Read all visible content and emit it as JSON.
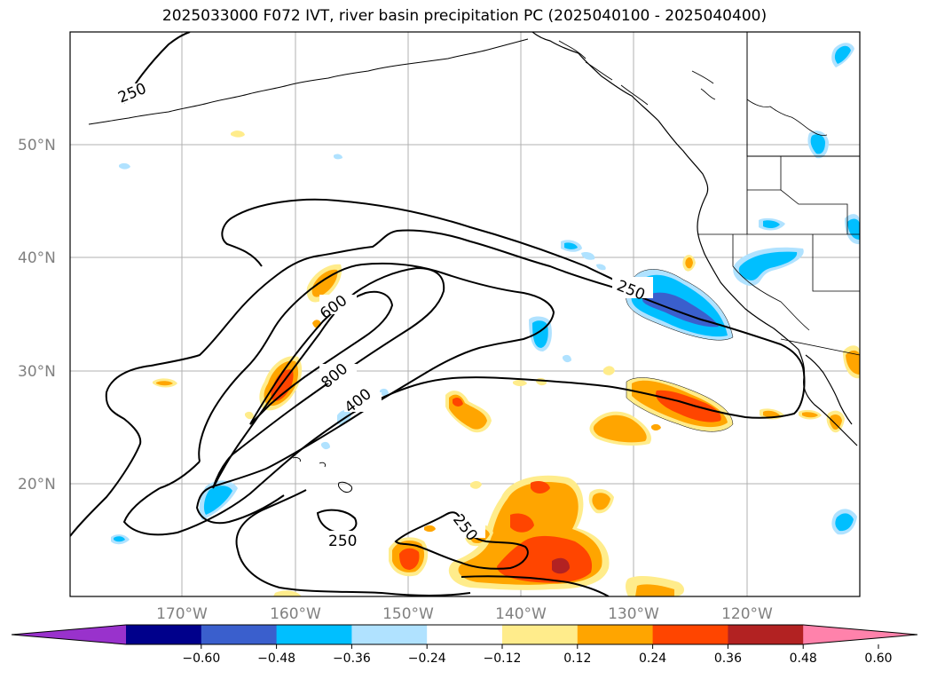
{
  "title": "2025033000 F072 IVT, river basin precipitation PC (2025040100 - 2025040400)",
  "map": {
    "lat_labels": [
      "50°N",
      "40°N",
      "30°N",
      "20°N"
    ],
    "lon_labels": [
      "170°W",
      "160°W",
      "150°W",
      "140°W",
      "130°W",
      "120°W"
    ],
    "contour_labels": [
      "250",
      "600",
      "800",
      "400",
      "250",
      "250",
      "250"
    ]
  },
  "colorbar": {
    "ticks": [
      "−0.60",
      "−0.48",
      "−0.36",
      "−0.24",
      "−0.12",
      "0.12",
      "0.24",
      "0.36",
      "0.48",
      "0.60"
    ],
    "colors": [
      "#9932cc",
      "#00008b",
      "#3a5fcd",
      "#00bfff",
      "#b0e2ff",
      "#ffffff",
      "#ffec8b",
      "#ffa500",
      "#ff4500",
      "#b22222",
      "#ff82ab"
    ]
  },
  "colors": {
    "land_outline": "#000000",
    "gridline": "#b0b0b0"
  }
}
